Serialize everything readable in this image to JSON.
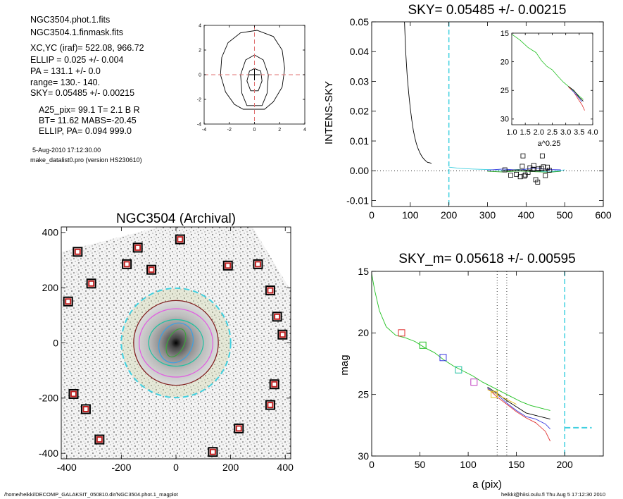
{
  "header_info": {
    "lines": [
      "NGC3504.phot.1.fits",
      "NGC3504.1.finmask.fits",
      "XC,YC (iraf)=    522.08, 966.72",
      "ELLIP = 0.025 +/- 0.004",
      "PA     = 131.1 +/-   0.0",
      "range=  130.-  140.",
      "SKY= 0.05485 +/- 0.00215"
    ],
    "param_lines": [
      "A25_pix= 99.1   T= 2.1  B R",
      "BT=  11.62   MABS=-20.45",
      "ELLIP, PA= 0.094   999.0"
    ],
    "date": "5-Aug-2010 17:12:30.00",
    "program": "make_datalist0.pro (version HS230610)"
  },
  "footer": {
    "path": "/home/heikki/DECOMP_GALAKSIT_050810.dir/NGC3504.phot.1_magplot",
    "user_time": "heikki@hiisi.oulu.fi  Thu Aug  5 17:12:30 2010"
  },
  "chart_data": [
    {
      "id": "contour_map",
      "type": "contour",
      "xlim": [
        -4,
        4
      ],
      "ylim": [
        -4,
        4
      ],
      "xticks": [
        -4,
        -2,
        0,
        2,
        4
      ],
      "yticks": [
        -4,
        -2,
        0,
        2,
        4
      ],
      "center_cross": [
        0,
        0
      ],
      "center_lines_color": "#e07070",
      "contours": [
        {
          "points": [
            [
              -0.9,
              -2.8
            ],
            [
              0.8,
              -2.8
            ],
            [
              1.5,
              -2.2
            ],
            [
              2.2,
              -1
            ],
            [
              2.4,
              0.5
            ],
            [
              2.2,
              2
            ],
            [
              1.5,
              3.1
            ],
            [
              0.2,
              3.6
            ],
            [
              -1.1,
              3.4
            ],
            [
              -2.1,
              2.6
            ],
            [
              -2.6,
              1.4
            ],
            [
              -2.7,
              0
            ],
            [
              -2.3,
              -1.4
            ],
            [
              -1.6,
              -2.4
            ]
          ]
        },
        {
          "points": [
            [
              -0.6,
              -2.5
            ],
            [
              0.6,
              -2.5
            ],
            [
              1,
              -1.5
            ],
            [
              1.1,
              0
            ],
            [
              0.7,
              1.2
            ],
            [
              0,
              1.6
            ],
            [
              -0.7,
              1.2
            ],
            [
              -1.1,
              0
            ],
            [
              -1,
              -1.5
            ]
          ]
        },
        {
          "points": [
            [
              -0.3,
              -1.3
            ],
            [
              0.3,
              -1.3
            ],
            [
              0.6,
              -0.5
            ],
            [
              0.5,
              0.3
            ],
            [
              0,
              0.5
            ],
            [
              -0.4,
              0.3
            ],
            [
              -0.6,
              -0.5
            ]
          ]
        }
      ]
    },
    {
      "id": "sky_profile",
      "type": "line",
      "title": "SKY= 0.05485 +/- 0.00215",
      "xlabel": "",
      "ylabel": "INTENS-SKY",
      "xlim": [
        0,
        600
      ],
      "ylim": [
        -0.012,
        0.05
      ],
      "xticks": [
        0,
        100,
        200,
        300,
        400,
        500,
        600
      ],
      "yticks": [
        -0.01,
        0.0,
        0.01,
        0.02,
        0.03,
        0.04,
        0.05
      ],
      "ytick_labels": [
        "-0.01",
        "0.00",
        "0.01",
        "0.02",
        "0.03",
        "0.04",
        "0.05"
      ],
      "vline_x": 200,
      "vline_color": "#40d0e0",
      "hline_y": 0,
      "profile": {
        "x": [
          85,
          88,
          92,
          96,
          100,
          104,
          108,
          112,
          116,
          120,
          125,
          130,
          135,
          140,
          145,
          150,
          155
        ],
        "y": [
          0.05,
          0.04,
          0.032,
          0.026,
          0.021,
          0.017,
          0.0135,
          0.011,
          0.009,
          0.0075,
          0.006,
          0.0048,
          0.004,
          0.0033,
          0.0028,
          0.0027,
          0.0025
        ]
      },
      "series": [
        {
          "color": "#40d0e0",
          "x": [
            200,
            230,
            260,
            300,
            340,
            380,
            420,
            460,
            500
          ],
          "y": [
            0.0012,
            0.0008,
            0.0006,
            0.0004,
            0.0002,
            0.0004,
            0.0001,
            -0.0004,
            0.0003
          ]
        },
        {
          "color": "#3a3ae0",
          "x": [
            300,
            340,
            380,
            420,
            460,
            490
          ],
          "y": [
            0.0002,
            0.0006,
            0.0002,
            0.0009,
            0.0004,
            0.0003
          ]
        },
        {
          "color": "#20a020",
          "x": [
            300,
            340,
            380,
            420,
            460,
            490
          ],
          "y": [
            -0.0002,
            -0.0004,
            -0.0001,
            -0.0003,
            -0.0005,
            -0.0002
          ]
        },
        {
          "color": "#000000",
          "x": [
            340,
            380,
            420,
            460
          ],
          "y": [
            0.0001,
            0.0003,
            0.0001,
            0.0002
          ]
        }
      ],
      "points": {
        "x": [
          345,
          360,
          375,
          385,
          390,
          392,
          395,
          398,
          405,
          410,
          418,
          420,
          425,
          430,
          432,
          440,
          442,
          445,
          450,
          455,
          460
        ],
        "y": [
          0.0003,
          -0.0015,
          -0.0012,
          -0.002,
          0.0015,
          0.005,
          -0.0018,
          -0.0014,
          -0.0005,
          0.001,
          0.0005,
          0.0018,
          -0.003,
          -0.0038,
          0.0006,
          0.0008,
          0.005,
          0.0013,
          -0.0016,
          0.0012,
          0.0002
        ]
      },
      "inset": {
        "type": "line",
        "xlabel": "a^0.25",
        "xlim": [
          1.0,
          4.0
        ],
        "ylim": [
          15,
          31
        ],
        "xticks": [
          1.0,
          1.5,
          2.0,
          2.5,
          3.0,
          3.5,
          4.0
        ],
        "xtick_labels": [
          "1.0",
          "1.5",
          "2.0",
          "2.5",
          "3.0",
          "3.5",
          "4.0"
        ],
        "yticks": [
          15,
          20,
          25,
          30
        ],
        "series": [
          {
            "color": "#20c020",
            "x": [
              1.0,
              1.3,
              1.6,
              1.9,
              2.1,
              2.3,
              2.5,
              2.7,
              2.9,
              3.1,
              3.3,
              3.5,
              3.65
            ],
            "y": [
              15.2,
              16.2,
              17.5,
              18.4,
              19.8,
              20.8,
              21.4,
              22.5,
              23.5,
              24.3,
              25.1,
              26.0,
              26.6
            ]
          },
          {
            "color": "#e03030",
            "x": [
              3.1,
              3.3,
              3.5,
              3.6,
              3.7
            ],
            "y": [
              24.4,
              25.3,
              26.8,
              27.5,
              28.5
            ]
          },
          {
            "color": "#000000",
            "x": [
              3.1,
              3.3,
              3.5,
              3.65
            ],
            "y": [
              24.3,
              25.0,
              26.2,
              26.9
            ]
          },
          {
            "color": "#3a3ae0",
            "x": [
              3.2,
              3.4,
              3.6
            ],
            "y": [
              24.8,
              25.8,
              27.0
            ]
          }
        ]
      }
    },
    {
      "id": "galaxy_image",
      "type": "image",
      "title": "NGC3504 (Archival)",
      "xlim": [
        -420,
        420
      ],
      "ylim": [
        -420,
        420
      ],
      "xticks": [
        -400,
        -200,
        0,
        200,
        400
      ],
      "yticks": [
        -400,
        -200,
        0,
        200,
        400
      ],
      "circle_radius": 200,
      "circle_color": "#40d0e0",
      "ellipses": [
        {
          "rx": 155,
          "ry": 155,
          "color": "#802020"
        },
        {
          "rx": 135,
          "ry": 125,
          "color": "#e060e0"
        },
        {
          "rx": 100,
          "ry": 85,
          "color": "#20c0a0"
        },
        {
          "rx": 60,
          "ry": 75,
          "color": "#40a0e0"
        },
        {
          "rx": 30,
          "ry": 55,
          "color": "#40a040"
        }
      ],
      "mask_boxes": [
        [
          -360,
          330
        ],
        [
          -140,
          345
        ],
        [
          -180,
          285
        ],
        [
          -90,
          265
        ],
        [
          190,
          280
        ],
        [
          15,
          375
        ],
        [
          300,
          285
        ],
        [
          345,
          190
        ],
        [
          -310,
          215
        ],
        [
          -395,
          150
        ],
        [
          370,
          95
        ],
        [
          390,
          30
        ],
        [
          360,
          -150
        ],
        [
          -375,
          -185
        ],
        [
          -330,
          -240
        ],
        [
          345,
          -225
        ],
        [
          -280,
          -350
        ],
        [
          230,
          -310
        ],
        [
          135,
          -395
        ]
      ]
    },
    {
      "id": "mag_profile",
      "type": "line",
      "title": "SKY_m=  0.05618 +/- 0.00595",
      "xlabel": "a (pix)",
      "ylabel": "mag",
      "xlim": [
        0,
        240
      ],
      "ylim": [
        15,
        30
      ],
      "xticks": [
        0,
        50,
        100,
        150,
        200
      ],
      "yticks": [
        15,
        20,
        25,
        30
      ],
      "vlines_dotted": [
        130,
        140
      ],
      "vline_x": 200,
      "vline_color": "#40d0e0",
      "sky_level": 27.7,
      "series": [
        {
          "color": "#20c020",
          "x": [
            0,
            3,
            8,
            15,
            25,
            35,
            45,
            55,
            65,
            75,
            85,
            95,
            105,
            115,
            125,
            135,
            145,
            155,
            165,
            175,
            185
          ],
          "y": [
            15.2,
            16.5,
            18.2,
            19.5,
            20.2,
            20.4,
            20.7,
            21.2,
            21.6,
            22.2,
            22.7,
            23.1,
            23.5,
            24.0,
            24.4,
            24.8,
            25.2,
            25.6,
            25.9,
            26.1,
            26.3
          ]
        },
        {
          "color": "#e03030",
          "x": [
            120,
            130,
            140,
            150,
            160,
            170,
            180,
            185
          ],
          "y": [
            24.5,
            25.2,
            25.8,
            26.4,
            26.9,
            27.3,
            28.0,
            28.8
          ]
        },
        {
          "color": "#3a3ae0",
          "x": [
            120,
            130,
            140,
            150,
            160,
            170,
            180,
            185
          ],
          "y": [
            24.5,
            25.0,
            25.7,
            26.3,
            26.8,
            27.0,
            27.4,
            27.8
          ]
        },
        {
          "color": "#000000",
          "x": [
            120,
            130,
            140,
            150,
            160,
            170,
            180,
            185
          ],
          "y": [
            24.4,
            24.9,
            25.5,
            26.0,
            26.5,
            26.7,
            26.9,
            27.0
          ]
        },
        {
          "color": "#e0c020",
          "x": [
            120,
            130,
            140,
            150
          ],
          "y": [
            24.6,
            25.0,
            25.4,
            25.8
          ]
        }
      ],
      "markers": [
        {
          "x": 31,
          "y": 20.0,
          "color": "#e03030"
        },
        {
          "x": 53,
          "y": 21.0,
          "color": "#20c020"
        },
        {
          "x": 74,
          "y": 22.0,
          "color": "#3a3ae0"
        },
        {
          "x": 90,
          "y": 23.0,
          "color": "#20c0a0"
        },
        {
          "x": 106,
          "y": 24.0,
          "color": "#c040c0"
        },
        {
          "x": 127,
          "y": 25.0,
          "color": "#e0c020"
        }
      ]
    }
  ]
}
